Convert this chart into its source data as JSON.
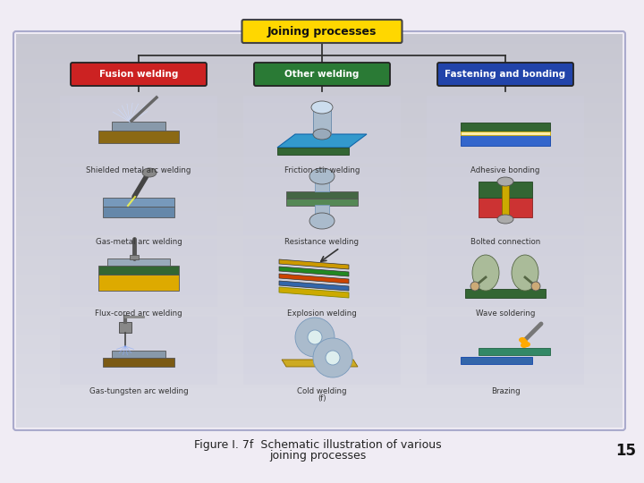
{
  "title": "Joining processes",
  "title_bg": "#FFD700",
  "title_border": "#555555",
  "categories": [
    "Fusion welding",
    "Other welding",
    "Fastening and bonding"
  ],
  "cat_colors": [
    "#CC2222",
    "#2A7A35",
    "#2244AA"
  ],
  "cat_border": [
    "#881111",
    "#1A5020",
    "#112288"
  ],
  "cat_text_color": "#FFFFFF",
  "items": [
    [
      "Shielded metal arc welding",
      "Gas-metal arc welding",
      "Flux-cored arc welding",
      "Gas-tungsten arc welding"
    ],
    [
      "Friction stir welding",
      "Resistance welding",
      "Explosion welding",
      "Cold welding"
    ],
    [
      "Adhesive bonding",
      "Bolted connection",
      "Wave soldering",
      "Brazing"
    ]
  ],
  "footer_line1": "Figure I. 7f  Schematic illustration of various",
  "footer_line2": "joining processes",
  "page_number": "15",
  "panel_bg_top": "#D8D8E8",
  "panel_bg": "#C8C8DC",
  "outer_bg": "#F0ECF4",
  "label_color": "#333333",
  "line_color": "#333333"
}
